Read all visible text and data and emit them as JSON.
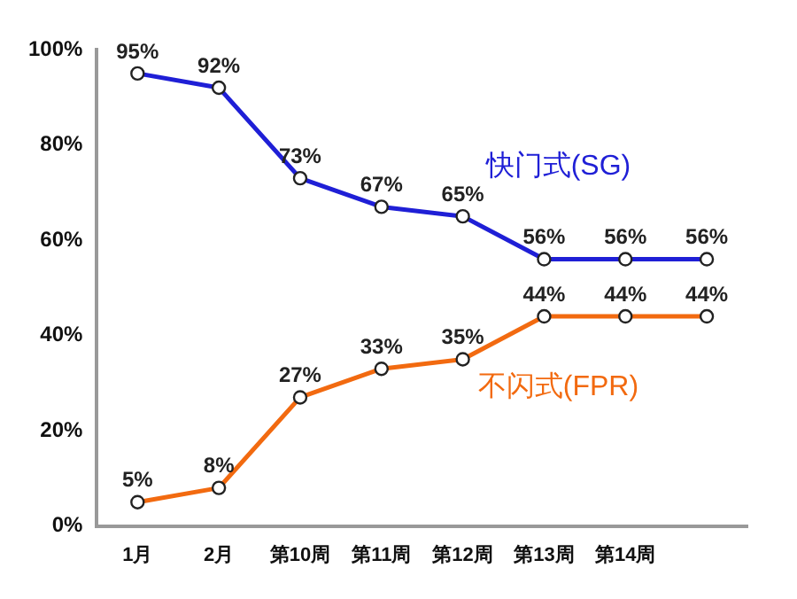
{
  "chart_data": {
    "type": "line",
    "categories": [
      "1月",
      "2月",
      "第10周",
      "第11周",
      "第12周",
      "第13周",
      "第14周",
      null
    ],
    "ylim": [
      0,
      100
    ],
    "yticks": [
      {
        "value": 0,
        "label": "0%"
      },
      {
        "value": 20,
        "label": "20%"
      },
      {
        "value": 40,
        "label": "40%"
      },
      {
        "value": 60,
        "label": "60%"
      },
      {
        "value": 80,
        "label": "80%"
      },
      {
        "value": 100,
        "label": "100%"
      }
    ],
    "grid": false,
    "legend": false,
    "marker": "circle",
    "line_style": "solid",
    "series": [
      {
        "name": "快门式(SG)",
        "color": "#1f1fd6",
        "values": [
          95,
          92,
          73,
          67,
          65,
          56,
          56,
          56
        ],
        "value_labels": [
          "95%",
          "92%",
          "73%",
          "67%",
          "65%",
          "56%",
          "56%",
          "56%"
        ]
      },
      {
        "name": "不闪式(FPR)",
        "color": "#f26a10",
        "values": [
          5,
          8,
          27,
          33,
          35,
          44,
          44,
          44
        ],
        "value_labels": [
          "5%",
          "8%",
          "27%",
          "33%",
          "35%",
          "44%",
          "44%",
          "44%"
        ]
      }
    ]
  }
}
